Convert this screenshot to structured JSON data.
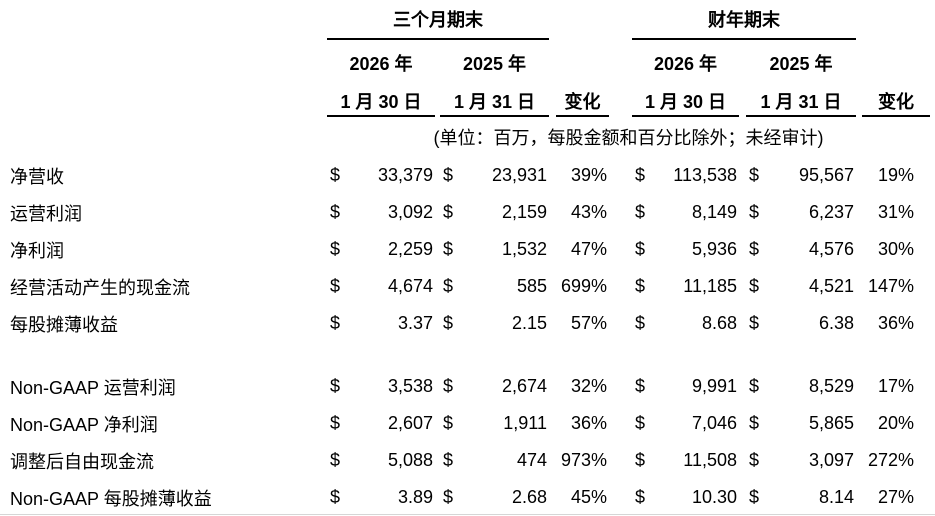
{
  "currency": "$",
  "header": {
    "quarter_group": "三个月期末",
    "fiscal_group": "财年期末",
    "year_2026": "2026 年",
    "year_2025": "2025 年",
    "date_2026": "1 月 30 日",
    "date_2025": "1 月 31 日",
    "change_label": "变化"
  },
  "unit_note": "(单位：百万，每股金额和百分比除外；未经审计)",
  "rows": [
    {
      "label": "净营收",
      "q26": "33,379",
      "q25": "23,931",
      "qchg": "39%",
      "fy26": "113,538",
      "fy25": "95,567",
      "fychg": "19%"
    },
    {
      "label": "运营利润",
      "q26": "3,092",
      "q25": "2,159",
      "qchg": "43%",
      "fy26": "8,149",
      "fy25": "6,237",
      "fychg": "31%"
    },
    {
      "label": "净利润",
      "q26": "2,259",
      "q25": "1,532",
      "qchg": "47%",
      "fy26": "5,936",
      "fy25": "4,576",
      "fychg": "30%"
    },
    {
      "label": "经营活动产生的现金流",
      "q26": "4,674",
      "q25": "585",
      "qchg": "699%",
      "fy26": "11,185",
      "fy25": "4,521",
      "fychg": "147%"
    },
    {
      "label": "每股摊薄收益",
      "q26": "3.37",
      "q25": "2.15",
      "qchg": "57%",
      "fy26": "8.68",
      "fy25": "6.38",
      "fychg": "36%"
    },
    {
      "label": "Non-GAAP 运营利润",
      "q26": "3,538",
      "q25": "2,674",
      "qchg": "32%",
      "fy26": "9,991",
      "fy25": "8,529",
      "fychg": "17%"
    },
    {
      "label": "Non-GAAP 净利润",
      "q26": "2,607",
      "q25": "1,911",
      "qchg": "36%",
      "fy26": "7,046",
      "fy25": "5,865",
      "fychg": "20%"
    },
    {
      "label": "调整后自由现金流",
      "q26": "5,088",
      "q25": "474",
      "qchg": "973%",
      "fy26": "11,508",
      "fy25": "3,097",
      "fychg": "272%"
    },
    {
      "label": "Non-GAAP 每股摊薄收益",
      "q26": "3.89",
      "q25": "2.68",
      "qchg": "45%",
      "fy26": "10.30",
      "fy25": "8.14",
      "fychg": "27%"
    }
  ]
}
